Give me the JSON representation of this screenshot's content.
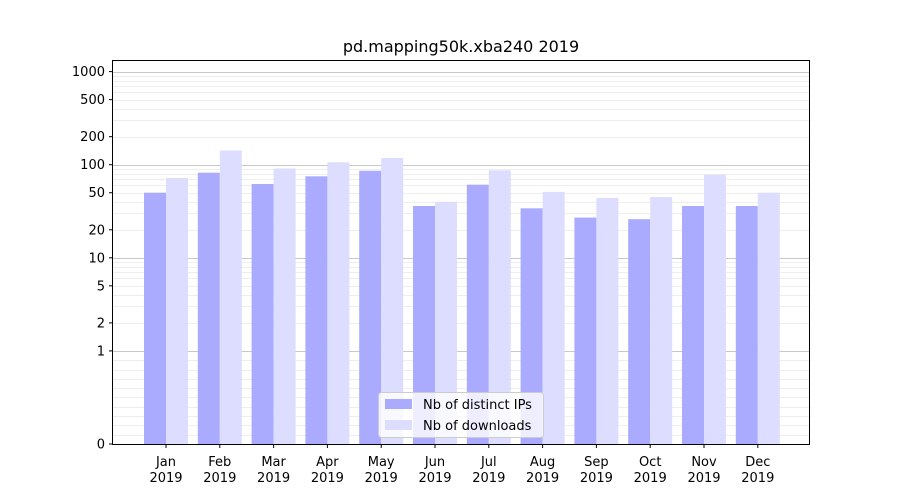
{
  "chart_data": {
    "type": "bar",
    "title": "pd.mapping50k.xba240 2019",
    "xlabel": "",
    "ylabel": "",
    "yscale": "symlog",
    "ylim": [
      0,
      1300
    ],
    "yticks": [
      0,
      1,
      2,
      5,
      10,
      20,
      50,
      100,
      200,
      500,
      1000
    ],
    "ytick_labels": [
      "0",
      "1",
      "2",
      "5",
      "10",
      "20",
      "50",
      "100",
      "200",
      "500",
      "1000"
    ],
    "grid": true,
    "legend_position": "bottom-center",
    "categories": [
      "Jan\n2019",
      "Feb\n2019",
      "Mar\n2019",
      "Apr\n2019",
      "May\n2019",
      "Jun\n2019",
      "Jul\n2019",
      "Aug\n2019",
      "Sep\n2019",
      "Oct\n2019",
      "Nov\n2019",
      "Dec\n2019"
    ],
    "series": [
      {
        "name": "Nb of distinct IPs",
        "color": "#aaaaff",
        "values": [
          50,
          82,
          62,
          75,
          86,
          36,
          61,
          34,
          27,
          26,
          36,
          36
        ]
      },
      {
        "name": "Nb of downloads",
        "color": "#ddddff",
        "values": [
          72,
          142,
          91,
          106,
          118,
          40,
          87,
          51,
          44,
          45,
          78,
          50
        ]
      }
    ]
  }
}
